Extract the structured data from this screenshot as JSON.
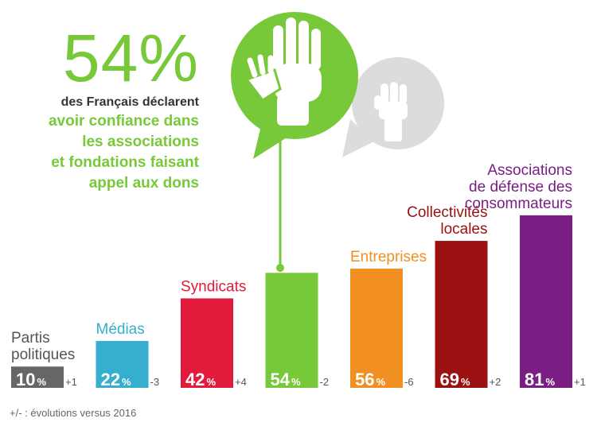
{
  "headline": {
    "percent": "54%",
    "intro": "des Français déclarent",
    "claim_lines": [
      "avoir confiance dans",
      "les associations",
      "et fondations faisant",
      "appel aux dons"
    ]
  },
  "footnote": "+/- : évolutions versus 2016",
  "colors": {
    "green": "#77c93a",
    "grey": "#dcdcdc",
    "text_dark": "#333333"
  },
  "chart_data": {
    "type": "bar",
    "ylim": [
      0,
      100
    ],
    "unit": "%",
    "bars": [
      {
        "label_lines": [
          "Partis",
          "politiques"
        ],
        "value": 10,
        "change": "+1",
        "color": "#666666",
        "label_color": "#555555"
      },
      {
        "label_lines": [
          "Médias"
        ],
        "value": 22,
        "change": "-3",
        "color": "#36afcf",
        "label_color": "#36afcf"
      },
      {
        "label_lines": [
          "Syndicats"
        ],
        "value": 42,
        "change": "+4",
        "color": "#e01b3b",
        "label_color": "#e01b3b"
      },
      {
        "label_lines": [],
        "value": 54,
        "change": "-2",
        "color": "#77c93a",
        "label_color": "#77c93a"
      },
      {
        "label_lines": [
          "Entreprises"
        ],
        "value": 56,
        "change": "-6",
        "color": "#f28f22",
        "label_color": "#f28f22"
      },
      {
        "label_lines": [
          "Collectivités",
          "locales"
        ],
        "value": 69,
        "change": "+2",
        "color": "#9b1010",
        "label_color": "#9b1010"
      },
      {
        "label_lines": [
          "Associations",
          "de défense des",
          "consommateurs"
        ],
        "value": 81,
        "change": "+1",
        "color": "#7a1e83",
        "label_color": "#7a1e83"
      }
    ]
  }
}
